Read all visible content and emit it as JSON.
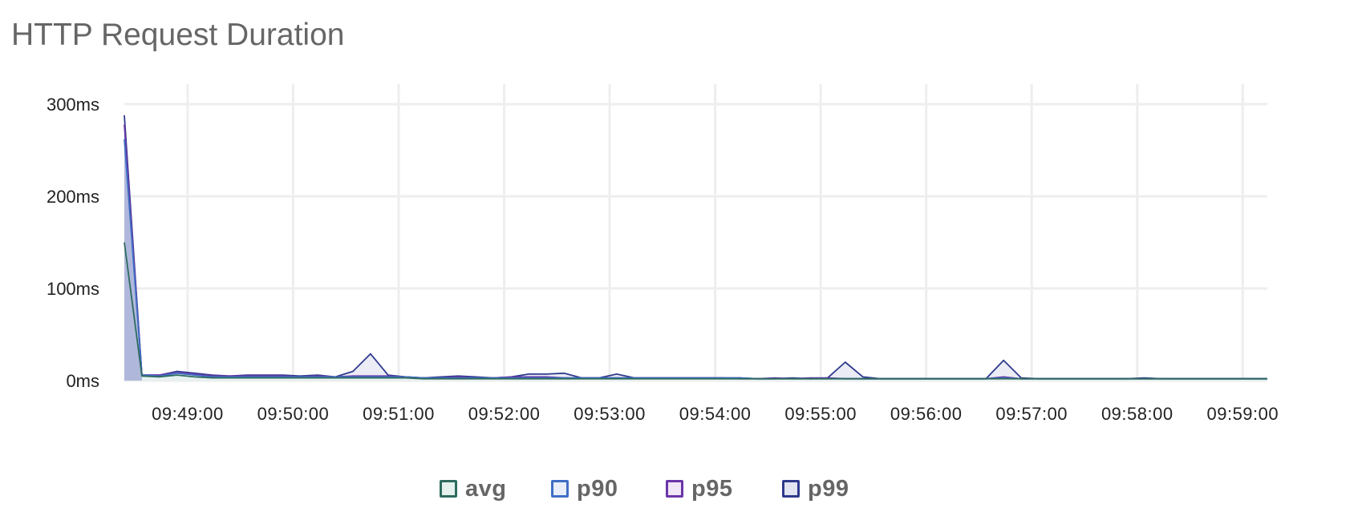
{
  "chart_data": {
    "type": "area",
    "title": "HTTP Request Duration",
    "xlabel": "",
    "ylabel": "",
    "ylim": [
      0,
      300
    ],
    "y_unit": "ms",
    "y_ticks": [
      "0ms",
      "100ms",
      "200ms",
      "300ms"
    ],
    "y_tick_values": [
      0,
      100,
      200,
      300
    ],
    "x_range": [
      "09:48:24",
      "09:59:14"
    ],
    "x_ticks": [
      "09:49:00",
      "09:50:00",
      "09:51:00",
      "09:52:00",
      "09:53:00",
      "09:54:00",
      "09:55:00",
      "09:56:00",
      "09:57:00",
      "09:58:00",
      "09:59:00"
    ],
    "grid": true,
    "legend_position": "bottom",
    "x": [
      "09:48:24",
      "09:48:34",
      "09:48:44",
      "09:48:54",
      "09:49:04",
      "09:49:14",
      "09:49:24",
      "09:49:34",
      "09:49:44",
      "09:49:54",
      "09:50:04",
      "09:50:14",
      "09:50:24",
      "09:50:34",
      "09:50:44",
      "09:50:54",
      "09:51:04",
      "09:51:14",
      "09:51:24",
      "09:51:34",
      "09:51:44",
      "09:51:54",
      "09:52:04",
      "09:52:14",
      "09:52:24",
      "09:52:34",
      "09:52:44",
      "09:52:54",
      "09:53:04",
      "09:53:14",
      "09:53:24",
      "09:53:34",
      "09:53:44",
      "09:53:54",
      "09:54:04",
      "09:54:14",
      "09:54:24",
      "09:54:34",
      "09:54:44",
      "09:54:54",
      "09:55:04",
      "09:55:14",
      "09:55:24",
      "09:55:34",
      "09:55:44",
      "09:55:54",
      "09:56:04",
      "09:56:14",
      "09:56:24",
      "09:56:34",
      "09:56:44",
      "09:56:54",
      "09:57:04",
      "09:57:14",
      "09:57:24",
      "09:57:34",
      "09:57:44",
      "09:57:54",
      "09:58:04",
      "09:58:14",
      "09:58:24",
      "09:58:34",
      "09:58:44",
      "09:58:54",
      "09:59:04",
      "09:59:14"
    ],
    "series": [
      {
        "name": "avg",
        "color": "#2e6b5e",
        "fill": "#e6f1ee",
        "values": [
          150,
          5,
          4,
          6,
          4,
          3,
          3,
          3,
          3,
          3,
          3,
          3,
          3,
          3,
          3,
          3,
          3,
          2,
          2,
          2,
          2,
          2,
          2,
          2,
          2,
          2,
          2,
          2,
          2,
          2,
          2,
          2,
          2,
          2,
          2,
          2,
          2,
          2,
          2,
          2,
          2,
          2,
          2,
          2,
          2,
          2,
          2,
          2,
          2,
          2,
          2,
          2,
          2,
          2,
          2,
          2,
          2,
          2,
          2,
          2,
          2,
          2,
          2,
          2,
          2,
          2
        ]
      },
      {
        "name": "p90",
        "color": "#3f6fc4",
        "fill": "#e8effb",
        "values": [
          262,
          6,
          5,
          8,
          6,
          4,
          4,
          4,
          4,
          4,
          4,
          4,
          4,
          4,
          4,
          4,
          4,
          3,
          3,
          3,
          3,
          3,
          3,
          3,
          3,
          3,
          3,
          3,
          3,
          3,
          3,
          3,
          3,
          3,
          3,
          3,
          2,
          2,
          2,
          2,
          2,
          2,
          2,
          2,
          2,
          2,
          2,
          2,
          2,
          2,
          3,
          2,
          2,
          2,
          2,
          2,
          2,
          2,
          2,
          2,
          2,
          2,
          2,
          2,
          2,
          2
        ]
      },
      {
        "name": "p95",
        "color": "#6a35a8",
        "fill": "#f1e6f8",
        "values": [
          278,
          6,
          6,
          9,
          7,
          5,
          5,
          5,
          5,
          5,
          4,
          5,
          4,
          5,
          5,
          5,
          4,
          3,
          3,
          4,
          3,
          3,
          4,
          4,
          4,
          3,
          3,
          3,
          3,
          3,
          3,
          3,
          3,
          3,
          3,
          2,
          2,
          3,
          2,
          3,
          3,
          2,
          2,
          2,
          2,
          2,
          2,
          2,
          2,
          2,
          4,
          2,
          2,
          2,
          2,
          2,
          2,
          2,
          2,
          2,
          2,
          2,
          2,
          2,
          2,
          2
        ]
      },
      {
        "name": "p99",
        "color": "#2e3a8c",
        "fill": "#e2e4f2",
        "values": [
          288,
          6,
          6,
          10,
          8,
          6,
          5,
          6,
          6,
          6,
          5,
          6,
          4,
          10,
          29,
          6,
          4,
          3,
          4,
          5,
          4,
          3,
          4,
          7,
          7,
          8,
          3,
          3,
          7,
          3,
          3,
          3,
          3,
          3,
          3,
          3,
          2,
          2,
          3,
          2,
          3,
          20,
          4,
          2,
          2,
          2,
          2,
          2,
          2,
          2,
          22,
          3,
          2,
          2,
          2,
          2,
          2,
          2,
          3,
          2,
          2,
          2,
          2,
          2,
          2,
          2
        ]
      }
    ]
  }
}
